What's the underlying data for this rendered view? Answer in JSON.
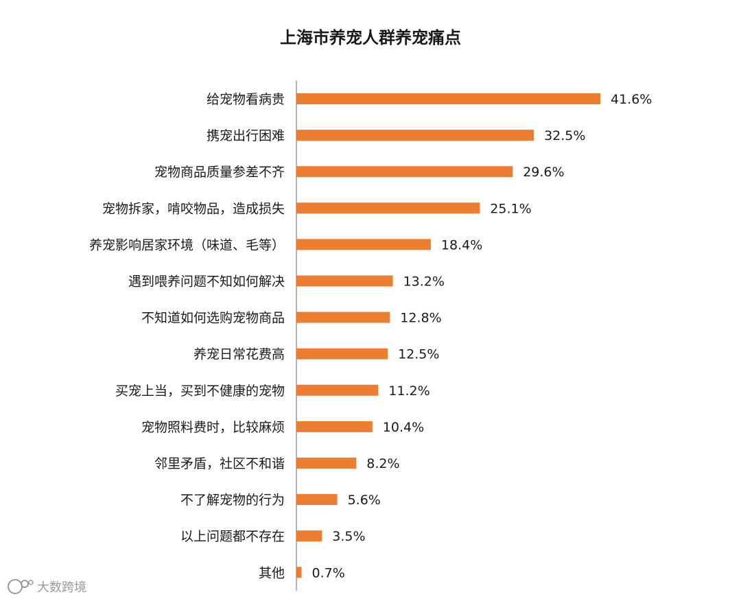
{
  "colors": {
    "bar": "#ED7D31",
    "axis": "#7f7f7f",
    "text": "#1a1a1a",
    "footer": "#9a9a9a"
  },
  "footer": {
    "icon": "weibo-style-logo-icon",
    "text": "大数跨境"
  },
  "chart_data": {
    "type": "bar",
    "orientation": "horizontal",
    "title": "上海市养宠人群养宠痛点",
    "xlabel": "",
    "ylabel": "",
    "grid": false,
    "legend": "none",
    "xlim": [
      0,
      45
    ],
    "categories": [
      "给宠物看病贵",
      "携宠出行困难",
      "宠物商品质量参差不齐",
      "宠物拆家，啃咬物品，造成损失",
      "养宠影响居家环境（味道、毛等）",
      "遇到喂养问题不知如何解决",
      "不知道如何选购宠物商品",
      "养宠日常花费高",
      "买宠上当，买到不健康的宠物",
      "宠物照料费时，比较麻烦",
      "邻里矛盾，社区不和谐",
      "不了解宠物的行为",
      "以上问题都不存在",
      "其他"
    ],
    "values": [
      41.6,
      32.5,
      29.6,
      25.1,
      18.4,
      13.2,
      12.8,
      12.5,
      11.2,
      10.4,
      8.2,
      5.6,
      3.5,
      0.7
    ],
    "value_labels": [
      "41.6%",
      "32.5%",
      "29.6%",
      "25.1%",
      "18.4%",
      "13.2%",
      "12.8%",
      "12.5%",
      "11.2%",
      "10.4%",
      "8.2%",
      "5.6%",
      "3.5%",
      "0.7%"
    ]
  }
}
